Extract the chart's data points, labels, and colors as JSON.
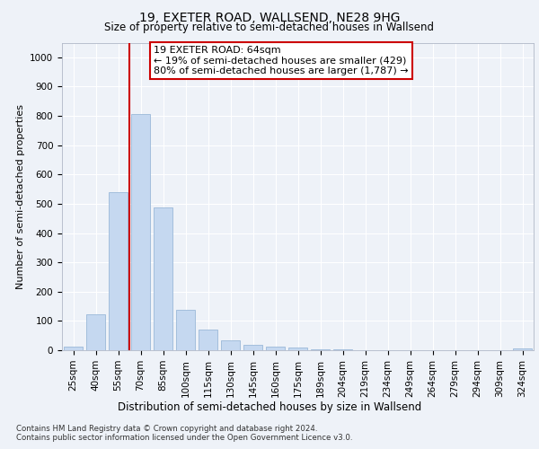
{
  "title1": "19, EXETER ROAD, WALLSEND, NE28 9HG",
  "title2": "Size of property relative to semi-detached houses in Wallsend",
  "xlabel": "Distribution of semi-detached houses by size in Wallsend",
  "ylabel": "Number of semi-detached properties",
  "categories": [
    "25sqm",
    "40sqm",
    "55sqm",
    "70sqm",
    "85sqm",
    "100sqm",
    "115sqm",
    "130sqm",
    "145sqm",
    "160sqm",
    "175sqm",
    "189sqm",
    "204sqm",
    "219sqm",
    "234sqm",
    "249sqm",
    "264sqm",
    "279sqm",
    "294sqm",
    "309sqm",
    "324sqm"
  ],
  "values": [
    12,
    122,
    541,
    806,
    487,
    138,
    70,
    35,
    18,
    12,
    8,
    4,
    2,
    0,
    0,
    0,
    0,
    0,
    0,
    0,
    7
  ],
  "bar_color": "#c5d8f0",
  "bar_edgecolor": "#9ab8d8",
  "vline_x": 2.5,
  "vline_color": "#cc0000",
  "annotation_line1": "19 EXETER ROAD: 64sqm",
  "annotation_line2": "← 19% of semi-detached houses are smaller (429)",
  "annotation_line3": "80% of semi-detached houses are larger (1,787) →",
  "annotation_box_color": "#ffffff",
  "annotation_box_edgecolor": "#cc0000",
  "ylim": [
    0,
    1050
  ],
  "yticks": [
    0,
    100,
    200,
    300,
    400,
    500,
    600,
    700,
    800,
    900,
    1000
  ],
  "footnote": "Contains HM Land Registry data © Crown copyright and database right 2024.\nContains public sector information licensed under the Open Government Licence v3.0.",
  "bg_color": "#eef2f8",
  "plot_bg_color": "#eef2f8",
  "grid_color": "#ffffff",
  "title1_fontsize": 10,
  "title2_fontsize": 8.5,
  "ylabel_fontsize": 8,
  "xlabel_fontsize": 8.5,
  "tick_fontsize": 7.5,
  "annot_fontsize": 8
}
